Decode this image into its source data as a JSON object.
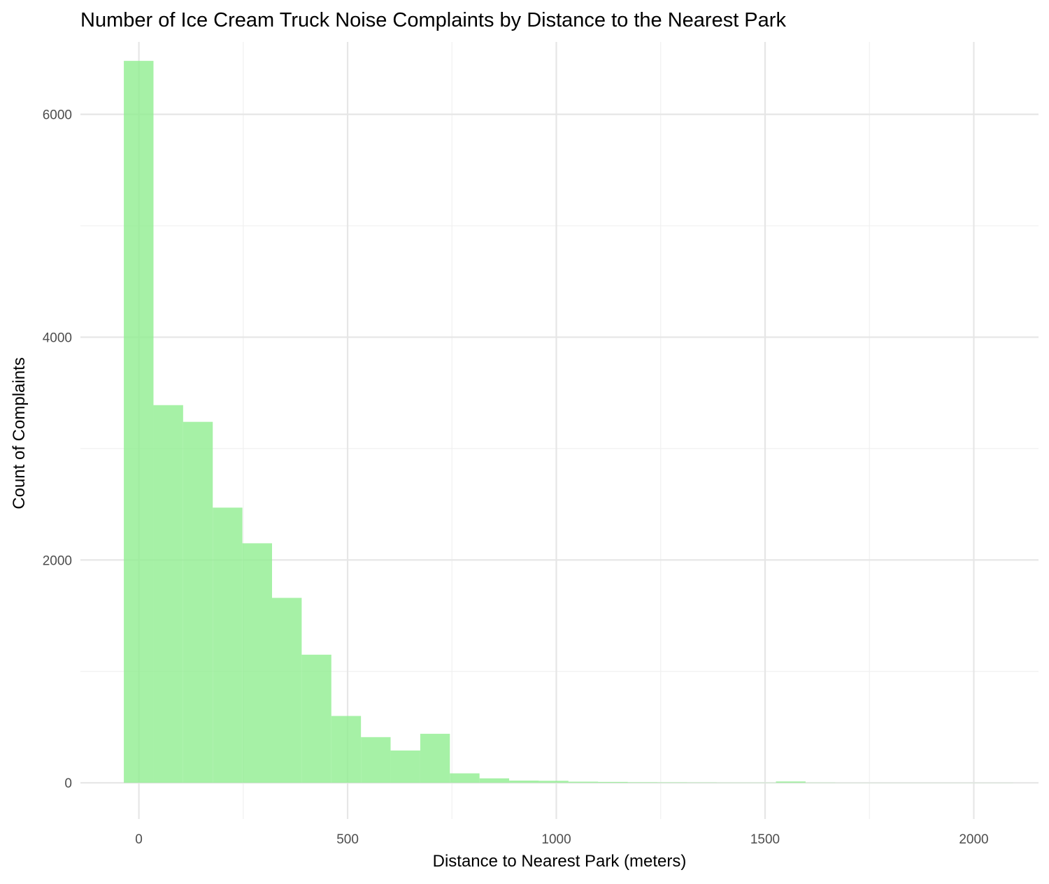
{
  "chart_data": {
    "type": "bar",
    "title": "Number of Ice Cream Truck Noise Complaints by Distance to the Nearest Park",
    "xlabel": "Distance to Nearest Park (meters)",
    "ylabel": "Count of Complaints",
    "xlim": [
      -140,
      2155
    ],
    "ylim": [
      -325,
      6650
    ],
    "x_ticks": [
      0,
      500,
      1000,
      1500,
      2000
    ],
    "x_tick_labels": [
      "0",
      "500",
      "1000",
      "1500",
      "2000"
    ],
    "y_ticks": [
      0,
      2000,
      4000,
      6000
    ],
    "y_tick_labels": [
      "0",
      "2000",
      "4000",
      "6000"
    ],
    "x_minor_ticks": [
      250,
      750,
      1250,
      1750
    ],
    "y_minor_ticks": [
      1000,
      3000,
      5000
    ],
    "grid": true,
    "legend": "none",
    "bar_color": "#90ee90",
    "bin_width": 71,
    "bins": [
      {
        "x_start": -36,
        "x_end": 35,
        "count": 6480
      },
      {
        "x_start": 35,
        "x_end": 106,
        "count": 3390
      },
      {
        "x_start": 106,
        "x_end": 177,
        "count": 3240
      },
      {
        "x_start": 177,
        "x_end": 248,
        "count": 2470
      },
      {
        "x_start": 248,
        "x_end": 319,
        "count": 2150
      },
      {
        "x_start": 319,
        "x_end": 390,
        "count": 1660
      },
      {
        "x_start": 390,
        "x_end": 461,
        "count": 1150
      },
      {
        "x_start": 461,
        "x_end": 532,
        "count": 600
      },
      {
        "x_start": 532,
        "x_end": 603,
        "count": 410
      },
      {
        "x_start": 603,
        "x_end": 674,
        "count": 290
      },
      {
        "x_start": 674,
        "x_end": 745,
        "count": 440
      },
      {
        "x_start": 745,
        "x_end": 816,
        "count": 85
      },
      {
        "x_start": 816,
        "x_end": 887,
        "count": 40
      },
      {
        "x_start": 887,
        "x_end": 958,
        "count": 20
      },
      {
        "x_start": 958,
        "x_end": 1029,
        "count": 18
      },
      {
        "x_start": 1029,
        "x_end": 1100,
        "count": 10
      },
      {
        "x_start": 1100,
        "x_end": 1171,
        "count": 8
      },
      {
        "x_start": 1171,
        "x_end": 1242,
        "count": 5
      },
      {
        "x_start": 1242,
        "x_end": 1313,
        "count": 4
      },
      {
        "x_start": 1313,
        "x_end": 1384,
        "count": 3
      },
      {
        "x_start": 1384,
        "x_end": 1455,
        "count": 2
      },
      {
        "x_start": 1455,
        "x_end": 1526,
        "count": 2
      },
      {
        "x_start": 1526,
        "x_end": 1597,
        "count": 12
      },
      {
        "x_start": 1597,
        "x_end": 1668,
        "count": 2
      },
      {
        "x_start": 1668,
        "x_end": 1739,
        "count": 1
      },
      {
        "x_start": 1739,
        "x_end": 1810,
        "count": 1
      },
      {
        "x_start": 1810,
        "x_end": 1881,
        "count": 1
      },
      {
        "x_start": 1881,
        "x_end": 1952,
        "count": 1
      },
      {
        "x_start": 1952,
        "x_end": 2023,
        "count": 1
      },
      {
        "x_start": 2023,
        "x_end": 2094,
        "count": 1
      }
    ]
  }
}
